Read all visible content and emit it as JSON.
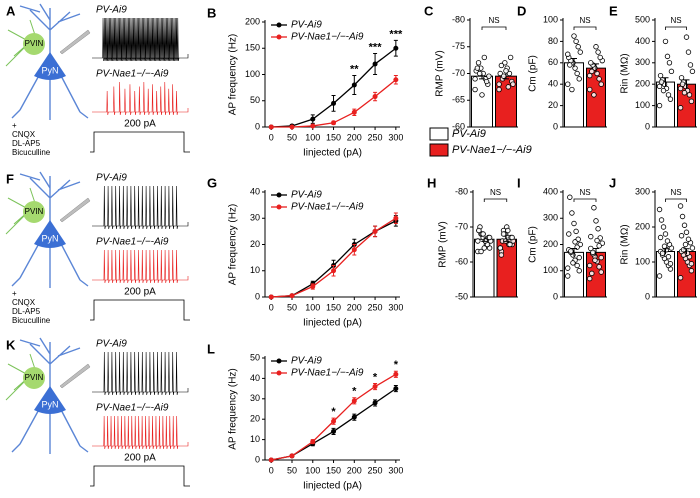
{
  "diagrams": [
    {
      "panel": "A",
      "cells": [
        "PVIN",
        "PyN"
      ],
      "traces": [
        "PV-Ai9",
        "PV-Nae1−/−-Ai9"
      ],
      "stimulus": "200 pA",
      "drugs": [
        "+",
        "CNQX",
        "DL-AP5",
        "Bicuculline"
      ]
    },
    {
      "panel": "F",
      "cells": [
        "PVIN",
        "PyN"
      ],
      "traces": [
        "PV-Ai9",
        "PV-Nae1−/−-Ai9"
      ],
      "stimulus": "200 pA",
      "drugs": [
        "+",
        "CNQX",
        "DL-AP5",
        "Bicuculline"
      ]
    },
    {
      "panel": "K",
      "cells": [
        "PVIN",
        "PyN"
      ],
      "traces": [
        "PV-Ai9",
        "PV-Nae1−/−-Ai9"
      ],
      "stimulus": "200 pA"
    }
  ],
  "chart_data": [
    {
      "type": "line",
      "panel": "B",
      "x_label": "Iinjected (pA)",
      "y_label": "AP frequency (Hz)",
      "x": [
        0,
        50,
        100,
        150,
        200,
        250,
        300
      ],
      "xlim": [
        -15,
        310
      ],
      "xticks": [
        0,
        50,
        100,
        150,
        200,
        250,
        300
      ],
      "ylim": [
        0,
        200
      ],
      "yticks": [
        0,
        50,
        100,
        150,
        200
      ],
      "series": [
        {
          "name": "PV-Ai9",
          "color": "#000000",
          "values": [
            0,
            2,
            15,
            45,
            80,
            120,
            150
          ],
          "errors": [
            0,
            2,
            8,
            15,
            18,
            20,
            15
          ]
        },
        {
          "name": "PV-Nae1−/−-Ai9",
          "color": "#e8201f",
          "values": [
            0,
            0,
            2,
            8,
            28,
            58,
            90
          ],
          "errors": [
            0,
            0,
            1,
            3,
            6,
            8,
            8
          ]
        }
      ],
      "annotations": [
        {
          "text": "**",
          "x": 200
        },
        {
          "text": "***",
          "x": 250
        },
        {
          "text": "***",
          "x": 300
        }
      ]
    },
    {
      "type": "bar",
      "panel": "C",
      "y_label": "RMP (mV)",
      "ylim": [
        -60,
        -80
      ],
      "yticks": [
        -60,
        -65,
        -70,
        -75,
        -80
      ],
      "annotation": "NS",
      "series": [
        {
          "name": "PV-Ai9",
          "color": "#ffffff",
          "values": [
            -69.5
          ],
          "errors": [
            0.5
          ],
          "points": [
            -67,
            -68,
            -69,
            -70,
            -71,
            -72,
            -70.5,
            -69.5,
            -68.5,
            -73,
            -66,
            -70,
            -71,
            -69
          ]
        },
        {
          "name": "PV-Nae1−/−-Ai9",
          "color": "#e8201f",
          "values": [
            -69.5
          ],
          "errors": [
            0.5
          ],
          "points": [
            -67,
            -68.5,
            -70,
            -71,
            -72,
            -69,
            -70,
            -68,
            -73,
            -67.5,
            -70.5,
            -69.5,
            -71.5,
            -68
          ]
        }
      ]
    },
    {
      "type": "bar",
      "panel": "D",
      "y_label": "Cm (pF)",
      "ylim": [
        0,
        100
      ],
      "yticks": [
        0,
        20,
        40,
        60,
        80,
        100
      ],
      "annotation": "NS",
      "series": [
        {
          "color": "#ffffff",
          "values": [
            60
          ],
          "errors": [
            4
          ],
          "points": [
            40,
            45,
            50,
            55,
            60,
            62,
            65,
            70,
            75,
            80,
            85,
            35,
            58,
            68
          ]
        },
        {
          "color": "#e8201f",
          "values": [
            55
          ],
          "errors": [
            4
          ],
          "points": [
            35,
            40,
            45,
            50,
            55,
            58,
            60,
            62,
            65,
            70,
            75,
            30,
            52,
            48
          ]
        }
      ]
    },
    {
      "type": "bar",
      "panel": "E",
      "y_label": "Rin (MΩ)",
      "ylim": [
        0,
        500
      ],
      "yticks": [
        0,
        100,
        200,
        300,
        400,
        500
      ],
      "annotation": "NS",
      "series": [
        {
          "color": "#ffffff",
          "values": [
            210
          ],
          "errors": [
            20
          ],
          "points": [
            100,
            130,
            150,
            180,
            200,
            220,
            240,
            260,
            300,
            330,
            400,
            170,
            210,
            190
          ]
        },
        {
          "color": "#e8201f",
          "values": [
            200
          ],
          "errors": [
            20
          ],
          "points": [
            90,
            120,
            150,
            170,
            190,
            210,
            230,
            260,
            290,
            350,
            420,
            160,
            200,
            180
          ]
        }
      ]
    },
    {
      "type": "line",
      "panel": "G",
      "x_label": "Iinjected (pA)",
      "y_label": "AP frequency (Hz)",
      "x": [
        0,
        50,
        100,
        150,
        200,
        250,
        300
      ],
      "xlim": [
        -15,
        310
      ],
      "xticks": [
        0,
        50,
        100,
        150,
        200,
        250,
        300
      ],
      "ylim": [
        0,
        40
      ],
      "yticks": [
        0,
        10,
        20,
        30,
        40
      ],
      "series": [
        {
          "name": "PV-Ai9",
          "color": "#000000",
          "values": [
            0,
            0.5,
            5,
            12,
            20,
            25,
            29
          ],
          "errors": [
            0,
            0.3,
            1,
            2,
            2,
            2,
            2
          ]
        },
        {
          "name": "PV-Nae1−/−-Ai9",
          "color": "#e8201f",
          "values": [
            0,
            0.5,
            4,
            10,
            18,
            25,
            30
          ],
          "errors": [
            0,
            0.3,
            1,
            2,
            2,
            2,
            2
          ]
        }
      ]
    },
    {
      "type": "bar",
      "panel": "H",
      "y_label": "RMP (mV)",
      "ylim": [
        -50,
        -80
      ],
      "yticks": [
        -50,
        -60,
        -70,
        -80
      ],
      "annotation": "NS",
      "series": [
        {
          "color": "#ffffff",
          "values": [
            -66.5
          ],
          "errors": [
            0.6
          ],
          "points": [
            -63,
            -64,
            -65,
            -66,
            -67,
            -68,
            -69,
            -66,
            -67,
            -65,
            -64,
            -68,
            -70,
            -66,
            -67,
            -65,
            -66,
            -68,
            -63,
            -69
          ]
        },
        {
          "color": "#e8201f",
          "values": [
            -66.5
          ],
          "errors": [
            0.6
          ],
          "points": [
            -64,
            -65,
            -66,
            -67,
            -68,
            -69,
            -63,
            -66,
            -67,
            -65,
            -70,
            -68,
            -66,
            -64,
            -67,
            -65,
            -69,
            -66,
            -68,
            -62
          ]
        }
      ]
    },
    {
      "type": "bar",
      "panel": "I",
      "y_label": "Cm (pF)",
      "ylim": [
        0,
        400
      ],
      "yticks": [
        0,
        100,
        200,
        300,
        400
      ],
      "annotation": "NS",
      "series": [
        {
          "color": "#ffffff",
          "values": [
            170
          ],
          "errors": [
            15
          ],
          "points": [
            80,
            100,
            120,
            140,
            160,
            170,
            180,
            200,
            220,
            250,
            280,
            320,
            380,
            110,
            150,
            190,
            210,
            130,
            175,
            240
          ]
        },
        {
          "color": "#e8201f",
          "values": [
            170
          ],
          "errors": [
            15
          ],
          "points": [
            70,
            95,
            115,
            135,
            155,
            165,
            185,
            205,
            225,
            260,
            290,
            340,
            90,
            120,
            150,
            195,
            215,
            140,
            170,
            230
          ]
        }
      ]
    },
    {
      "type": "bar",
      "panel": "J",
      "y_label": "Rin (MΩ)",
      "ylim": [
        0,
        300
      ],
      "yticks": [
        0,
        100,
        200,
        300
      ],
      "annotation": "NS",
      "series": [
        {
          "color": "#ffffff",
          "values": [
            130
          ],
          "errors": [
            8
          ],
          "points": [
            60,
            80,
            90,
            100,
            110,
            120,
            130,
            140,
            150,
            160,
            180,
            200,
            220,
            250,
            95,
            115,
            135,
            145,
            125,
            170
          ]
        },
        {
          "color": "#e8201f",
          "values": [
            130
          ],
          "errors": [
            8
          ],
          "points": [
            55,
            75,
            90,
            100,
            110,
            120,
            130,
            140,
            155,
            165,
            185,
            205,
            230,
            260,
            95,
            115,
            125,
            150,
            135,
            175
          ]
        }
      ]
    },
    {
      "type": "line",
      "panel": "L",
      "x_label": "Iinjected (pA)",
      "y_label": "AP frequency (Hz)",
      "x": [
        0,
        50,
        100,
        150,
        200,
        250,
        300
      ],
      "xlim": [
        -15,
        310
      ],
      "xticks": [
        0,
        50,
        100,
        150,
        200,
        250,
        300
      ],
      "ylim": [
        0,
        50
      ],
      "yticks": [
        0,
        10,
        20,
        30,
        40,
        50
      ],
      "series": [
        {
          "name": "PV-Ai9",
          "color": "#000000",
          "values": [
            0,
            2,
            8,
            14,
            21,
            28,
            35
          ],
          "errors": [
            0,
            0.3,
            1,
            1.5,
            1.5,
            1.5,
            1.5
          ]
        },
        {
          "name": "PV-Nae1−/−-Ai9",
          "color": "#e8201f",
          "values": [
            0,
            2,
            9,
            19,
            29,
            36,
            42
          ],
          "errors": [
            0,
            0.3,
            1,
            1.5,
            1.5,
            1.5,
            1.5
          ]
        }
      ],
      "annotations": [
        {
          "text": "*",
          "x": 150
        },
        {
          "text": "*",
          "x": 200
        },
        {
          "text": "*",
          "x": 250
        },
        {
          "text": "*",
          "x": 300
        }
      ]
    }
  ]
}
